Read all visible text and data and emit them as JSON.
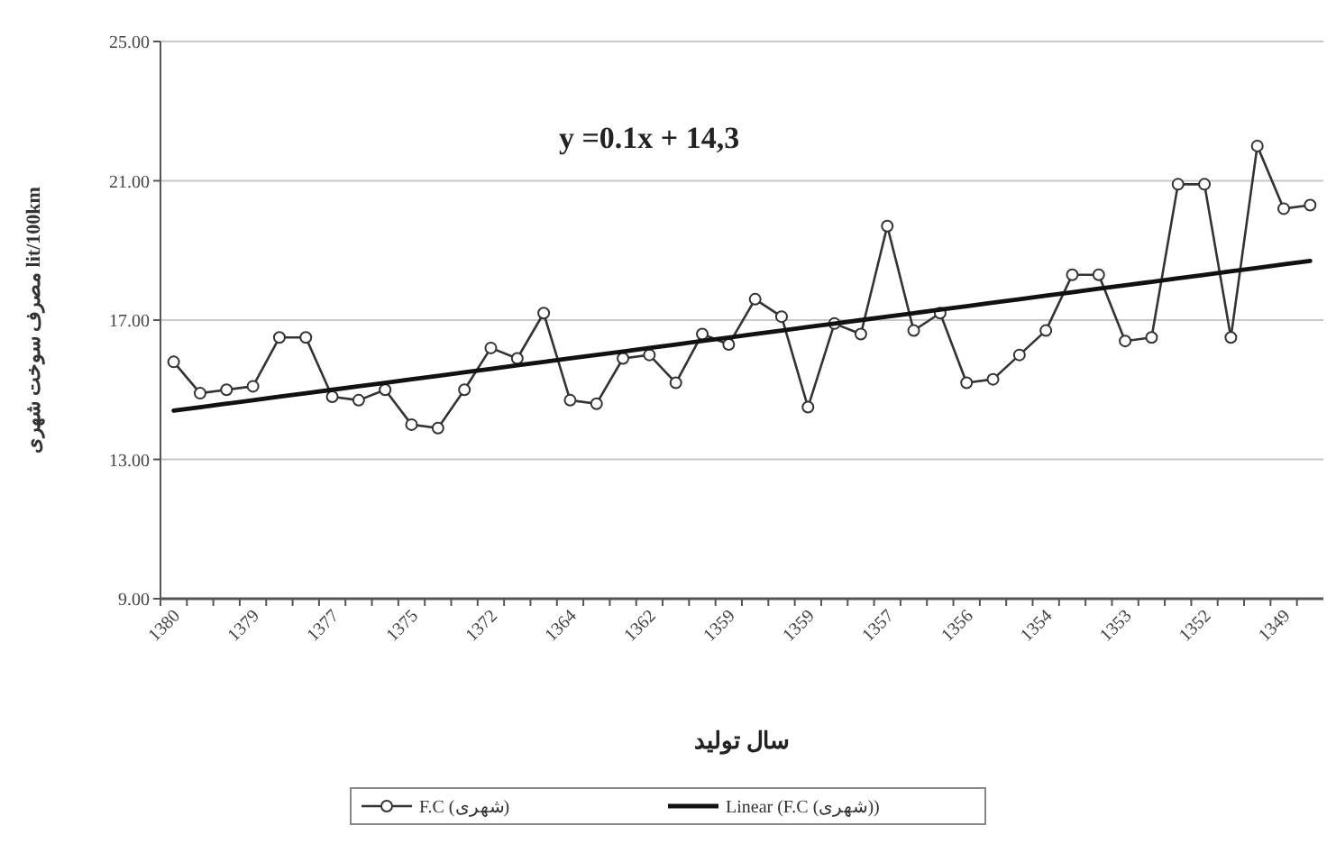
{
  "chart_data": {
    "type": "line",
    "xlabel": "سال تولید",
    "ylabel": "مصرف سوخت شهری lit/100km",
    "annotations": [
      "y =0.1x + 14,3"
    ],
    "categories": [
      "1380",
      null,
      null,
      "1379",
      null,
      null,
      "1377",
      null,
      null,
      "1375",
      null,
      null,
      "1372",
      null,
      null,
      "1364",
      null,
      null,
      "1362",
      null,
      null,
      "1359",
      null,
      null,
      "1359",
      null,
      null,
      "1357",
      null,
      null,
      "1356",
      null,
      null,
      "1354",
      null,
      null,
      "1353",
      null,
      null,
      "1352",
      null,
      null,
      "1349",
      null
    ],
    "series": [
      {
        "name": "F.C (شهری)",
        "color": "#333333",
        "marker": "circle",
        "values": [
          15.8,
          14.9,
          15.0,
          15.1,
          16.5,
          16.5,
          14.8,
          14.7,
          15.0,
          14.0,
          13.9,
          15.0,
          16.2,
          15.9,
          17.2,
          14.7,
          14.6,
          15.9,
          16.0,
          15.2,
          16.6,
          16.3,
          17.6,
          17.1,
          14.5,
          16.9,
          16.6,
          19.7,
          16.7,
          17.2,
          15.2,
          15.3,
          16.0,
          16.7,
          18.3,
          18.3,
          16.4,
          16.5,
          20.9,
          20.9,
          16.5,
          22.0,
          20.2,
          20.3
        ]
      },
      {
        "name": "Linear (F.C (شهری))",
        "color": "#111111",
        "marker": "none",
        "values": [
          14.4,
          14.5,
          14.6,
          14.7,
          14.8,
          14.9,
          15.0,
          15.1,
          15.2,
          15.3,
          15.4,
          15.5,
          15.6,
          15.7,
          15.8,
          15.9,
          16.0,
          16.1,
          16.2,
          16.3,
          16.4,
          16.5,
          16.6,
          16.7,
          16.8,
          16.9,
          17.0,
          17.1,
          17.2,
          17.3,
          17.4,
          17.5,
          17.6,
          17.7,
          17.8,
          17.9,
          18.0,
          18.1,
          18.2,
          18.3,
          18.4,
          18.5,
          18.6,
          18.7
        ]
      }
    ],
    "ylim": [
      9,
      25
    ],
    "yticks": [
      {
        "value": 9,
        "label": "9.00"
      },
      {
        "value": 13,
        "label": "13.00"
      },
      {
        "value": 17,
        "label": "17.00"
      },
      {
        "value": 21,
        "label": "21.00"
      },
      {
        "value": 25,
        "label": "25.00"
      }
    ],
    "grid": "y",
    "legend": "bottom",
    "line_style": "solid"
  }
}
